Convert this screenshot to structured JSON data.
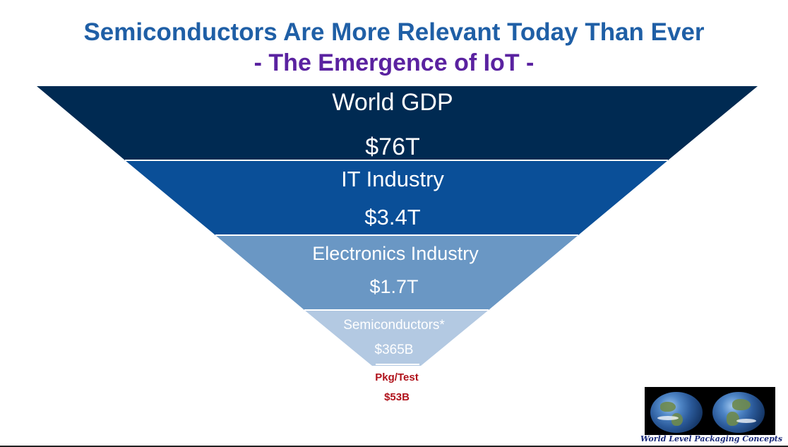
{
  "title": {
    "main": "Semiconductors Are More Relevant Today Than Ever",
    "sub": "- The Emergence of IoT -"
  },
  "funnel": {
    "layers": [
      {
        "name": "World GDP",
        "value": "$76T",
        "color": "#002a52"
      },
      {
        "name": "IT Industry",
        "value": "$3.4T",
        "color": "#0a4f98"
      },
      {
        "name": "Electronics Industry",
        "value": "$1.7T",
        "color": "#6a97c4"
      },
      {
        "name": "Semiconductors*",
        "value": "$365B",
        "color": "#b3c9e2"
      }
    ],
    "tip": {
      "name": "Pkg/Test",
      "value": "$53B",
      "color": "#b0121b"
    }
  },
  "logo": {
    "text": "World Level Packaging Concepts",
    "icon": "earth-globe-icon"
  }
}
